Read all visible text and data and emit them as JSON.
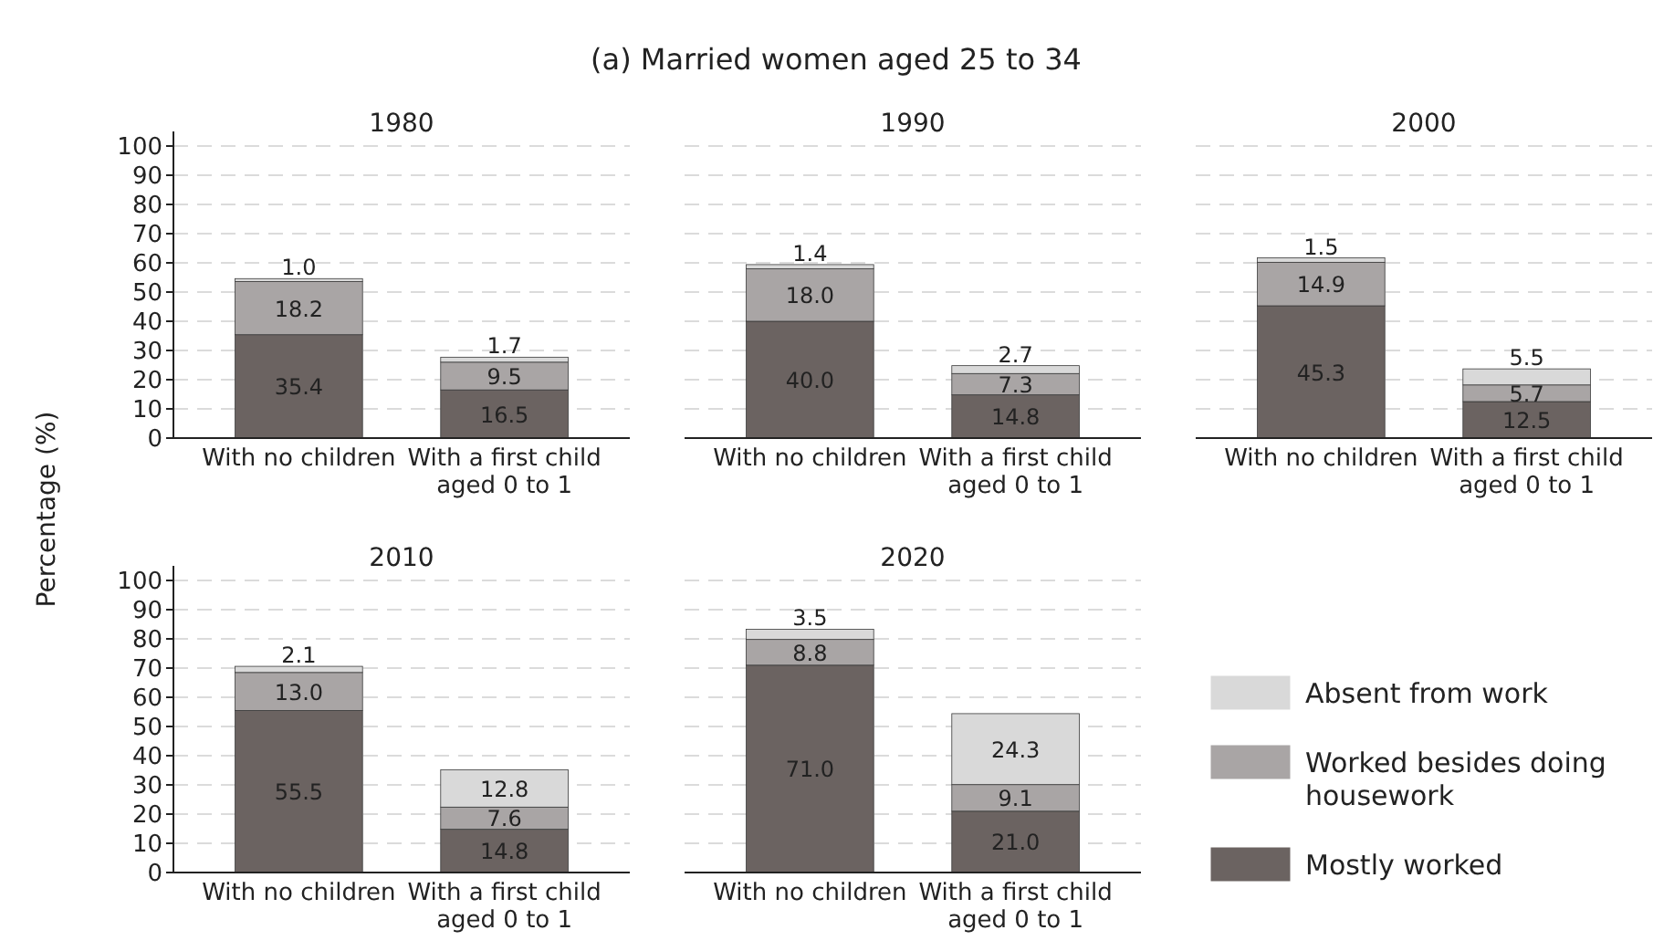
{
  "chart_data": [
    {
      "type": "bar",
      "title": "1980",
      "ylabel": "Percentage (%)",
      "annotations": [
        "(a) Married women aged 25 to 34"
      ],
      "categories": [
        "With no children",
        "With a first child aged 0 to 1"
      ],
      "stacked": true,
      "grid": "y",
      "ylim": [
        0,
        100
      ],
      "yticks": [
        0,
        10,
        20,
        30,
        40,
        50,
        60,
        70,
        80,
        90,
        100
      ],
      "series": [
        {
          "color": "#6b6361",
          "values": [
            35.4,
            16.5
          ],
          "value_labels": [
            "35.4",
            "16.5"
          ]
        },
        {
          "color": "#a9a5a5",
          "values": [
            18.2,
            9.5
          ],
          "value_labels": [
            "18.2",
            "9.5"
          ]
        },
        {
          "color": "#d9d9d9",
          "values": [
            1.0,
            1.7
          ],
          "value_labels": [
            "1.0",
            "1.7"
          ]
        }
      ]
    },
    {
      "type": "bar",
      "title": "1990",
      "categories": [
        "With no children",
        "With a first child aged 0 to 1"
      ],
      "stacked": true,
      "grid": "y",
      "tick_labels": "x",
      "ylim": [
        0,
        100
      ],
      "yticks": [
        0,
        10,
        20,
        30,
        40,
        50,
        60,
        70,
        80,
        90,
        100
      ],
      "series": [
        {
          "color": "#6b6361",
          "values": [
            40.0,
            14.8
          ],
          "value_labels": [
            "40.0",
            "14.8"
          ]
        },
        {
          "color": "#a9a5a5",
          "values": [
            18.0,
            7.3
          ],
          "value_labels": [
            "18.0",
            "7.3"
          ]
        },
        {
          "color": "#d9d9d9",
          "values": [
            1.4,
            2.7
          ],
          "value_labels": [
            "1.4",
            "2.7"
          ]
        }
      ]
    },
    {
      "type": "bar",
      "title": "2000",
      "categories": [
        "With no children",
        "With a first child aged 0 to 1"
      ],
      "stacked": true,
      "grid": "y",
      "tick_labels": "x",
      "ylim": [
        0,
        100
      ],
      "yticks": [
        0,
        10,
        20,
        30,
        40,
        50,
        60,
        70,
        80,
        90,
        100
      ],
      "series": [
        {
          "color": "#6b6361",
          "values": [
            45.3,
            12.5
          ],
          "value_labels": [
            "45.3",
            "12.5"
          ]
        },
        {
          "color": "#a9a5a5",
          "values": [
            14.9,
            5.7
          ],
          "value_labels": [
            "14.9",
            "5.7"
          ]
        },
        {
          "color": "#d9d9d9",
          "values": [
            1.5,
            5.5
          ],
          "value_labels": [
            "1.5",
            "5.5"
          ]
        }
      ]
    },
    {
      "type": "bar",
      "title": "2010",
      "categories": [
        "With no children",
        "With a first child aged 0 to 1"
      ],
      "stacked": true,
      "grid": "y",
      "ylim": [
        0,
        100
      ],
      "yticks": [
        0,
        10,
        20,
        30,
        40,
        50,
        60,
        70,
        80,
        90,
        100
      ],
      "series": [
        {
          "color": "#6b6361",
          "values": [
            55.5,
            14.8
          ],
          "value_labels": [
            "55.5",
            "14.8"
          ]
        },
        {
          "color": "#a9a5a5",
          "values": [
            13.0,
            7.6
          ],
          "value_labels": [
            "13.0",
            "7.6"
          ]
        },
        {
          "color": "#d9d9d9",
          "values": [
            2.1,
            12.8
          ],
          "value_labels": [
            "2.1",
            "12.8"
          ]
        }
      ]
    },
    {
      "type": "bar",
      "title": "2020",
      "categories": [
        "With no children",
        "With a first child aged 0 to 1"
      ],
      "stacked": true,
      "grid": "y",
      "tick_labels": "x",
      "legend": "right",
      "ylim": [
        0,
        100
      ],
      "yticks": [
        0,
        10,
        20,
        30,
        40,
        50,
        60,
        70,
        80,
        90,
        100
      ],
      "series": [
        {
          "name": "Mostly worked",
          "color": "#6b6361",
          "values": [
            71.0,
            21.0
          ],
          "value_labels": [
            "71.0",
            "21.0"
          ]
        },
        {
          "name": "Worked besides doing housework",
          "color": "#a9a5a5",
          "values": [
            8.8,
            9.1
          ],
          "value_labels": [
            "8.8",
            "9.1"
          ]
        },
        {
          "name": "Absent from work",
          "color": "#d9d9d9",
          "values": [
            3.5,
            24.3
          ],
          "value_labels": [
            "3.5",
            "24.3"
          ]
        }
      ]
    }
  ]
}
